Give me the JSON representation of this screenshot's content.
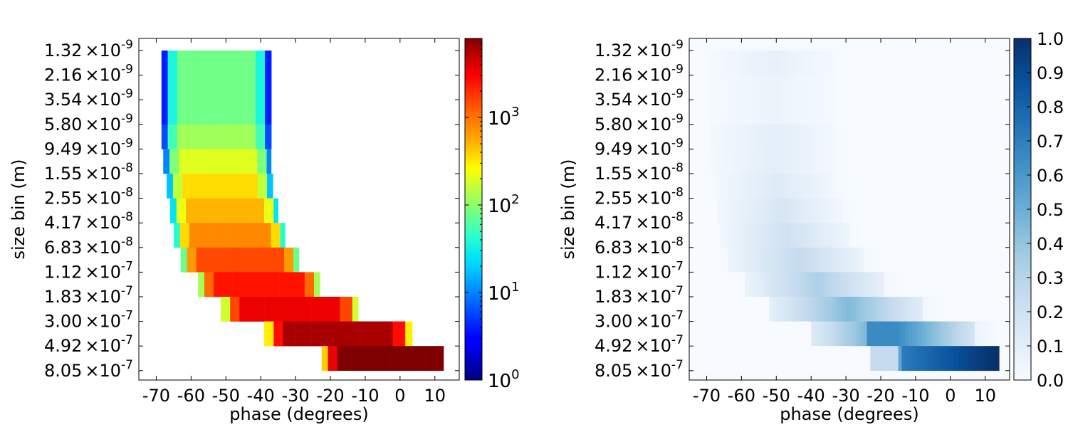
{
  "chart_data": [
    {
      "type": "heatmap",
      "xlabel": "phase (degrees)",
      "ylabel": "size bin (m)",
      "x_ticks": [
        "-70",
        "-60",
        "-50",
        "-40",
        "-30",
        "-20",
        "-10",
        "0",
        "10"
      ],
      "xlim": [
        -75,
        17
      ],
      "y_ticks": [
        {
          "mantissa": "1.32",
          "exp": "-9"
        },
        {
          "mantissa": "2.16",
          "exp": "-9"
        },
        {
          "mantissa": "3.54",
          "exp": "-9"
        },
        {
          "mantissa": "5.80",
          "exp": "-9"
        },
        {
          "mantissa": "9.49",
          "exp": "-9"
        },
        {
          "mantissa": "1.55",
          "exp": "-8"
        },
        {
          "mantissa": "2.55",
          "exp": "-8"
        },
        {
          "mantissa": "4.17",
          "exp": "-8"
        },
        {
          "mantissa": "6.83",
          "exp": "-8"
        },
        {
          "mantissa": "1.12",
          "exp": "-7"
        },
        {
          "mantissa": "1.83",
          "exp": "-7"
        },
        {
          "mantissa": "3.00",
          "exp": "-7"
        },
        {
          "mantissa": "4.92",
          "exp": "-7"
        },
        {
          "mantissa": "8.05",
          "exp": "-7"
        }
      ],
      "colormap": "jet",
      "color_scale": "log",
      "colorbar": {
        "range": [
          1,
          8000
        ],
        "ticks": [
          {
            "base": "10",
            "exp": "0"
          },
          {
            "base": "10",
            "exp": "1"
          },
          {
            "base": "10",
            "exp": "2"
          },
          {
            "base": "10",
            "exp": "3"
          }
        ]
      },
      "rows": [
        {
          "size_bin": "2.16e-9",
          "phase_range": [
            -68.5,
            -37
          ],
          "typical_count": 80
        },
        {
          "size_bin": "3.54e-9",
          "phase_range": [
            -68.5,
            -37
          ],
          "typical_count": 80
        },
        {
          "size_bin": "5.80e-9",
          "phase_range": [
            -68.5,
            -37
          ],
          "typical_count": 80
        },
        {
          "size_bin": "9.49e-9",
          "phase_range": [
            -68.5,
            -37
          ],
          "typical_count": 120
        },
        {
          "size_bin": "1.55e-8",
          "phase_range": [
            -68,
            -37
          ],
          "typical_count": 200
        },
        {
          "size_bin": "2.55e-8",
          "phase_range": [
            -67,
            -36.5
          ],
          "typical_count": 350
        },
        {
          "size_bin": "4.17e-8",
          "phase_range": [
            -66,
            -35
          ],
          "typical_count": 500
        },
        {
          "size_bin": "6.83e-8",
          "phase_range": [
            -65,
            -33
          ],
          "typical_count": 800
        },
        {
          "size_bin": "1.12e-7",
          "phase_range": [
            -63,
            -29
          ],
          "typical_count": 1500
        },
        {
          "size_bin": "1.83e-7",
          "phase_range": [
            -58,
            -23
          ],
          "typical_count": 2500
        },
        {
          "size_bin": "3.00e-7",
          "phase_range": [
            -51.5,
            -12
          ],
          "typical_count": 3500
        },
        {
          "size_bin": "4.92e-7",
          "phase_range": [
            -39,
            3.5
          ],
          "typical_count": 6000
        },
        {
          "size_bin": "8.05e-7",
          "phase_range": [
            -22.5,
            12.5
          ],
          "typical_count": 8000
        }
      ]
    },
    {
      "type": "heatmap",
      "xlabel": "phase (degrees)",
      "ylabel": "size bin (m)",
      "x_ticks": [
        "-70",
        "-60",
        "-50",
        "-40",
        "-30",
        "-20",
        "-10",
        "0",
        "10"
      ],
      "xlim": [
        -75,
        17
      ],
      "colormap": "Blues",
      "color_scale": "linear",
      "colorbar": {
        "range": [
          0,
          1
        ],
        "ticks": [
          "0.0",
          "0.1",
          "0.2",
          "0.3",
          "0.4",
          "0.5",
          "0.6",
          "0.7",
          "0.8",
          "0.9",
          "1.0"
        ]
      },
      "rows": [
        {
          "size_bin": "2.16e-9",
          "peak_value": 0.08
        },
        {
          "size_bin": "3.54e-9",
          "peak_value": 0.06
        },
        {
          "size_bin": "5.80e-9",
          "peak_value": 0.06
        },
        {
          "size_bin": "9.49e-9",
          "peak_value": 0.1
        },
        {
          "size_bin": "1.55e-8",
          "peak_value": 0.1
        },
        {
          "size_bin": "2.55e-8",
          "peak_value": 0.13
        },
        {
          "size_bin": "4.17e-8",
          "peak_value": 0.16
        },
        {
          "size_bin": "6.83e-8",
          "peak_value": 0.2
        },
        {
          "size_bin": "1.12e-7",
          "peak_value": 0.25
        },
        {
          "size_bin": "1.83e-7",
          "peak_value": 0.33
        },
        {
          "size_bin": "3.00e-7",
          "peak_value": 0.45
        },
        {
          "size_bin": "4.92e-7",
          "peak_value": 0.65
        },
        {
          "size_bin": "8.05e-7",
          "peak_value": 1.0
        }
      ]
    }
  ]
}
